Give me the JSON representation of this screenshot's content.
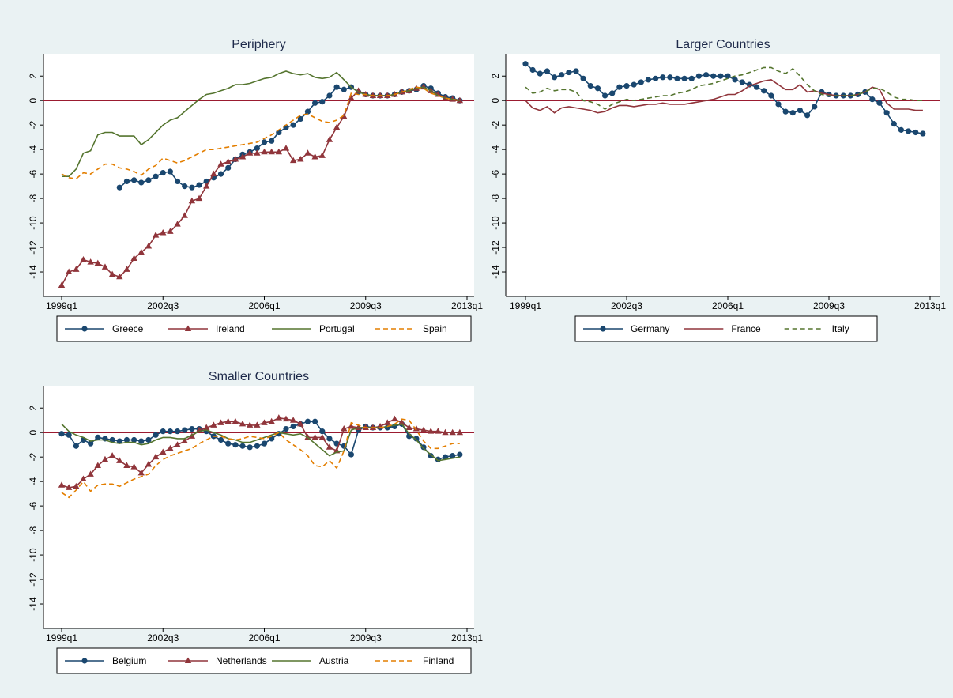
{
  "chart_data": [
    {
      "type": "line",
      "title": "Periphery",
      "legend": "bottom",
      "grid": false,
      "refline": 0,
      "refline_color": "#9b1b30",
      "x": [
        "1999q1",
        "1999q2",
        "1999q3",
        "1999q4",
        "2000q1",
        "2000q2",
        "2000q3",
        "2000q4",
        "2001q1",
        "2001q2",
        "2001q3",
        "2001q4",
        "2002q1",
        "2002q2",
        "2002q3",
        "2002q4",
        "2003q1",
        "2003q2",
        "2003q3",
        "2003q4",
        "2004q1",
        "2004q2",
        "2004q3",
        "2004q4",
        "2005q1",
        "2005q2",
        "2005q3",
        "2005q4",
        "2006q1",
        "2006q2",
        "2006q3",
        "2006q4",
        "2007q1",
        "2007q2",
        "2007q3",
        "2007q4",
        "2008q1",
        "2008q2",
        "2008q3",
        "2008q4",
        "2009q1",
        "2009q2",
        "2009q3",
        "2009q4",
        "2010q1",
        "2010q2",
        "2010q3",
        "2010q4",
        "2011q1",
        "2011q2",
        "2011q3",
        "2011q4",
        "2012q1",
        "2012q2",
        "2012q3",
        "2012q4"
      ],
      "xlim": [
        "1999q1",
        "2013q1"
      ],
      "xticks": [
        "1999q1",
        "2002q3",
        "2006q1",
        "2009q3",
        "2013q1"
      ],
      "ylim": [
        -16,
        3.5
      ],
      "yticks": [
        -14,
        -12,
        -10,
        -8,
        -6,
        -4,
        -2,
        0,
        2
      ],
      "series": [
        {
          "name": "Greece",
          "color": "#1a476f",
          "marker": "circle",
          "dash": false,
          "values": [
            null,
            null,
            null,
            null,
            null,
            null,
            null,
            null,
            -7.1,
            -6.6,
            -6.5,
            -6.7,
            -6.5,
            -6.2,
            -5.9,
            -5.8,
            -6.6,
            -7.0,
            -7.1,
            -6.9,
            -6.6,
            -6.3,
            -6.0,
            -5.5,
            -4.8,
            -4.4,
            -4.2,
            -3.9,
            -3.4,
            -3.3,
            -2.6,
            -2.2,
            -2.0,
            -1.5,
            -0.9,
            -0.2,
            -0.1,
            0.4,
            1.1,
            0.9,
            1.1,
            0.7,
            0.5,
            0.4,
            0.4,
            0.4,
            0.5,
            0.7,
            0.8,
            0.9,
            1.2,
            1.0,
            0.6,
            0.3,
            0.2,
            0.0
          ]
        },
        {
          "name": "Ireland",
          "color": "#90353b",
          "marker": "triangle",
          "dash": false,
          "values": [
            -15.1,
            -14.0,
            -13.8,
            -13.0,
            -13.2,
            -13.3,
            -13.6,
            -14.2,
            -14.4,
            -13.8,
            -12.9,
            -12.4,
            -11.9,
            -11.0,
            -10.8,
            -10.7,
            -10.1,
            -9.4,
            -8.2,
            -8.0,
            -7.0,
            -6.0,
            -5.2,
            -5.0,
            -4.8,
            -4.6,
            -4.3,
            -4.3,
            -4.2,
            -4.2,
            -4.2,
            -3.9,
            -4.9,
            -4.8,
            -4.3,
            -4.6,
            -4.5,
            -3.2,
            -2.2,
            -1.3,
            0.2,
            0.8,
            0.5,
            0.4,
            0.4,
            0.4,
            0.5,
            0.7,
            0.8,
            1.0,
            1.1,
            0.8,
            0.5,
            0.2,
            0.1,
            0.0
          ]
        },
        {
          "name": "Portugal",
          "color": "#55752f",
          "marker": "none",
          "dash": false,
          "values": [
            -6.2,
            -6.2,
            -5.6,
            -4.3,
            -4.1,
            -2.8,
            -2.6,
            -2.6,
            -2.9,
            -2.9,
            -2.9,
            -3.6,
            -3.2,
            -2.6,
            -2.0,
            -1.6,
            -1.4,
            -0.9,
            -0.4,
            0.1,
            0.5,
            0.6,
            0.8,
            1.0,
            1.3,
            1.3,
            1.4,
            1.6,
            1.8,
            1.9,
            2.2,
            2.4,
            2.2,
            2.1,
            2.2,
            1.9,
            1.8,
            1.9,
            2.3,
            1.7,
            1.1,
            0.7,
            0.5,
            0.4,
            0.4,
            0.4,
            0.5,
            0.7,
            0.8,
            1.0,
            1.1,
            0.8,
            0.4,
            0.2,
            0.1,
            0.0
          ]
        },
        {
          "name": "Spain",
          "color": "#e37e00",
          "marker": "none",
          "dash": true,
          "values": [
            -6.0,
            -6.3,
            -6.4,
            -5.9,
            -6.0,
            -5.6,
            -5.2,
            -5.2,
            -5.5,
            -5.6,
            -5.8,
            -6.1,
            -5.6,
            -5.3,
            -4.7,
            -4.9,
            -5.1,
            -4.9,
            -4.6,
            -4.3,
            -4.0,
            -4.0,
            -3.9,
            -3.8,
            -3.7,
            -3.6,
            -3.5,
            -3.4,
            -3.1,
            -2.8,
            -2.4,
            -2.0,
            -1.6,
            -1.2,
            -1.1,
            -1.4,
            -1.7,
            -1.8,
            -1.6,
            -1.2,
            0.6,
            0.5,
            0.5,
            0.4,
            0.4,
            0.4,
            0.5,
            0.7,
            0.9,
            1.1,
            1.0,
            0.6,
            0.4,
            0.2,
            0.1,
            0.0
          ]
        }
      ]
    },
    {
      "type": "line",
      "title": "Larger Countries",
      "legend": "bottom",
      "grid": false,
      "refline": 0,
      "refline_color": "#9b1b30",
      "x": [
        "1999q1",
        "1999q2",
        "1999q3",
        "1999q4",
        "2000q1",
        "2000q2",
        "2000q3",
        "2000q4",
        "2001q1",
        "2001q2",
        "2001q3",
        "2001q4",
        "2002q1",
        "2002q2",
        "2002q3",
        "2002q4",
        "2003q1",
        "2003q2",
        "2003q3",
        "2003q4",
        "2004q1",
        "2004q2",
        "2004q3",
        "2004q4",
        "2005q1",
        "2005q2",
        "2005q3",
        "2005q4",
        "2006q1",
        "2006q2",
        "2006q3",
        "2006q4",
        "2007q1",
        "2007q2",
        "2007q3",
        "2007q4",
        "2008q1",
        "2008q2",
        "2008q3",
        "2008q4",
        "2009q1",
        "2009q2",
        "2009q3",
        "2009q4",
        "2010q1",
        "2010q2",
        "2010q3",
        "2010q4",
        "2011q1",
        "2011q2",
        "2011q3",
        "2011q4",
        "2012q1",
        "2012q2",
        "2012q3",
        "2012q4"
      ],
      "xlim": [
        "1999q1",
        "2013q1"
      ],
      "xticks": [
        "1999q1",
        "2002q3",
        "2006q1",
        "2009q3",
        "2013q1"
      ],
      "ylim": [
        -16,
        3.5
      ],
      "yticks": [
        -14,
        -12,
        -10,
        -8,
        -6,
        -4,
        -2,
        0,
        2
      ],
      "series": [
        {
          "name": "Germany",
          "color": "#1a476f",
          "marker": "circle",
          "dash": false,
          "values": [
            3.0,
            2.5,
            2.2,
            2.4,
            1.9,
            2.1,
            2.3,
            2.4,
            1.8,
            1.2,
            1.0,
            0.4,
            0.6,
            1.1,
            1.2,
            1.3,
            1.5,
            1.7,
            1.8,
            1.9,
            1.9,
            1.8,
            1.8,
            1.8,
            2.0,
            2.1,
            2.0,
            2.0,
            2.0,
            1.7,
            1.5,
            1.3,
            1.1,
            0.8,
            0.4,
            -0.3,
            -0.9,
            -1.0,
            -0.8,
            -1.2,
            -0.5,
            0.7,
            0.5,
            0.4,
            0.4,
            0.4,
            0.5,
            0.7,
            0.1,
            -0.2,
            -1.0,
            -1.9,
            -2.4,
            -2.5,
            -2.6,
            -2.7
          ]
        },
        {
          "name": "France",
          "color": "#90353b",
          "marker": "none",
          "dash": false,
          "values": [
            0.0,
            -0.6,
            -0.8,
            -0.5,
            -1.0,
            -0.6,
            -0.5,
            -0.6,
            -0.7,
            -0.8,
            -1.0,
            -0.9,
            -0.6,
            -0.4,
            -0.4,
            -0.5,
            -0.4,
            -0.3,
            -0.3,
            -0.2,
            -0.3,
            -0.3,
            -0.3,
            -0.2,
            -0.1,
            0.0,
            0.1,
            0.3,
            0.5,
            0.5,
            0.8,
            1.2,
            1.4,
            1.6,
            1.7,
            1.3,
            0.9,
            0.9,
            1.3,
            0.7,
            0.8,
            0.6,
            0.5,
            0.4,
            0.4,
            0.4,
            0.5,
            0.7,
            1.1,
            0.9,
            -0.2,
            -0.7,
            -0.7,
            -0.7,
            -0.8,
            -0.8
          ]
        },
        {
          "name": "Italy",
          "color": "#55752f",
          "marker": "none",
          "dash": true,
          "values": [
            1.1,
            0.6,
            0.7,
            1.0,
            0.8,
            0.9,
            0.9,
            0.7,
            0.0,
            -0.1,
            -0.3,
            -0.7,
            -0.3,
            -0.1,
            0.1,
            0.0,
            0.1,
            0.2,
            0.3,
            0.4,
            0.4,
            0.6,
            0.7,
            0.9,
            1.2,
            1.3,
            1.4,
            1.6,
            1.8,
            2.0,
            2.1,
            2.3,
            2.5,
            2.7,
            2.7,
            2.4,
            2.2,
            2.6,
            2.0,
            1.3,
            0.8,
            0.5,
            0.4,
            0.4,
            0.4,
            0.4,
            0.5,
            0.7,
            1.0,
            1.0,
            0.7,
            0.3,
            0.1,
            0.1,
            0.0,
            0.0
          ]
        }
      ]
    },
    {
      "type": "line",
      "title": "Smaller Countries",
      "legend": "bottom",
      "grid": false,
      "refline": 0,
      "refline_color": "#9b1b30",
      "x": [
        "1999q1",
        "1999q2",
        "1999q3",
        "1999q4",
        "2000q1",
        "2000q2",
        "2000q3",
        "2000q4",
        "2001q1",
        "2001q2",
        "2001q3",
        "2001q4",
        "2002q1",
        "2002q2",
        "2002q3",
        "2002q4",
        "2003q1",
        "2003q2",
        "2003q3",
        "2003q4",
        "2004q1",
        "2004q2",
        "2004q3",
        "2004q4",
        "2005q1",
        "2005q2",
        "2005q3",
        "2005q4",
        "2006q1",
        "2006q2",
        "2006q3",
        "2006q4",
        "2007q1",
        "2007q2",
        "2007q3",
        "2007q4",
        "2008q1",
        "2008q2",
        "2008q3",
        "2008q4",
        "2009q1",
        "2009q2",
        "2009q3",
        "2009q4",
        "2010q1",
        "2010q2",
        "2010q3",
        "2010q4",
        "2011q1",
        "2011q2",
        "2011q3",
        "2011q4",
        "2012q1",
        "2012q2",
        "2012q3",
        "2012q4"
      ],
      "xlim": [
        "1999q1",
        "2013q1"
      ],
      "xticks": [
        "1999q1",
        "2002q3",
        "2006q1",
        "2009q3",
        "2013q1"
      ],
      "ylim": [
        -16,
        3.5
      ],
      "yticks": [
        -14,
        -12,
        -10,
        -8,
        -6,
        -4,
        -2,
        0,
        2
      ],
      "series": [
        {
          "name": "Belgium",
          "color": "#1a476f",
          "marker": "circle",
          "dash": false,
          "values": [
            -0.1,
            -0.2,
            -1.1,
            -0.6,
            -0.9,
            -0.4,
            -0.5,
            -0.6,
            -0.7,
            -0.6,
            -0.6,
            -0.7,
            -0.6,
            -0.2,
            0.1,
            0.1,
            0.1,
            0.2,
            0.3,
            0.3,
            0.1,
            -0.3,
            -0.6,
            -0.9,
            -1.0,
            -1.1,
            -1.2,
            -1.1,
            -0.9,
            -0.5,
            -0.1,
            0.3,
            0.5,
            0.7,
            0.9,
            0.9,
            0.1,
            -0.5,
            -0.9,
            -1.1,
            -1.8,
            0.2,
            0.5,
            0.4,
            0.4,
            0.4,
            0.5,
            0.7,
            -0.3,
            -0.5,
            -1.2,
            -1.9,
            -2.2,
            -2.0,
            -1.9,
            -1.8
          ]
        },
        {
          "name": "Netherlands",
          "color": "#90353b",
          "marker": "triangle",
          "dash": false,
          "values": [
            -4.3,
            -4.5,
            -4.4,
            -3.8,
            -3.4,
            -2.7,
            -2.2,
            -1.9,
            -2.3,
            -2.7,
            -2.8,
            -3.3,
            -2.6,
            -2.0,
            -1.6,
            -1.3,
            -1.0,
            -0.7,
            -0.3,
            0.2,
            0.4,
            0.6,
            0.8,
            0.9,
            0.9,
            0.7,
            0.6,
            0.6,
            0.8,
            0.9,
            1.2,
            1.1,
            1.0,
            0.7,
            -0.4,
            -0.4,
            -0.4,
            -1.2,
            -1.5,
            0.3,
            0.5,
            0.4,
            0.4,
            0.4,
            0.5,
            0.8,
            1.1,
            0.8,
            0.4,
            0.3,
            0.2,
            0.1,
            0.1,
            0.0,
            0.0,
            0.0
          ]
        },
        {
          "name": "Austria",
          "color": "#55752f",
          "marker": "none",
          "dash": false,
          "values": [
            0.7,
            0.1,
            -0.2,
            -0.4,
            -0.7,
            -0.6,
            -0.6,
            -0.8,
            -0.9,
            -0.8,
            -0.8,
            -1.0,
            -0.9,
            -0.6,
            -0.4,
            -0.4,
            -0.5,
            -0.5,
            -0.2,
            0.1,
            0.2,
            0.0,
            -0.2,
            -0.5,
            -0.6,
            -0.8,
            -0.8,
            -0.6,
            -0.4,
            -0.2,
            0.0,
            -0.1,
            -0.2,
            -0.1,
            -0.4,
            -0.9,
            -1.4,
            -1.9,
            -1.6,
            -1.5,
            0.2,
            0.4,
            0.4,
            0.4,
            0.4,
            0.5,
            0.6,
            0.7,
            -0.1,
            -0.6,
            -1.3,
            -1.8,
            -2.3,
            -2.2,
            -2.1,
            -2.0
          ]
        },
        {
          "name": "Finland",
          "color": "#e37e00",
          "marker": "none",
          "dash": true,
          "values": [
            -4.9,
            -5.3,
            -4.7,
            -4.0,
            -4.8,
            -4.3,
            -4.2,
            -4.2,
            -4.4,
            -4.1,
            -3.8,
            -3.6,
            -3.4,
            -2.7,
            -2.2,
            -1.9,
            -1.7,
            -1.5,
            -1.3,
            -0.9,
            -0.6,
            -0.3,
            -0.3,
            -0.5,
            -0.6,
            -0.5,
            -0.3,
            -0.4,
            -0.5,
            -0.3,
            0.0,
            -0.6,
            -1.0,
            -1.4,
            -1.9,
            -2.7,
            -2.8,
            -2.3,
            -2.9,
            -1.5,
            0.8,
            0.6,
            0.4,
            0.4,
            0.4,
            0.5,
            0.7,
            1.1,
            1.0,
            0.2,
            -0.7,
            -1.3,
            -1.3,
            -1.1,
            -0.9,
            -0.9
          ]
        }
      ]
    }
  ]
}
